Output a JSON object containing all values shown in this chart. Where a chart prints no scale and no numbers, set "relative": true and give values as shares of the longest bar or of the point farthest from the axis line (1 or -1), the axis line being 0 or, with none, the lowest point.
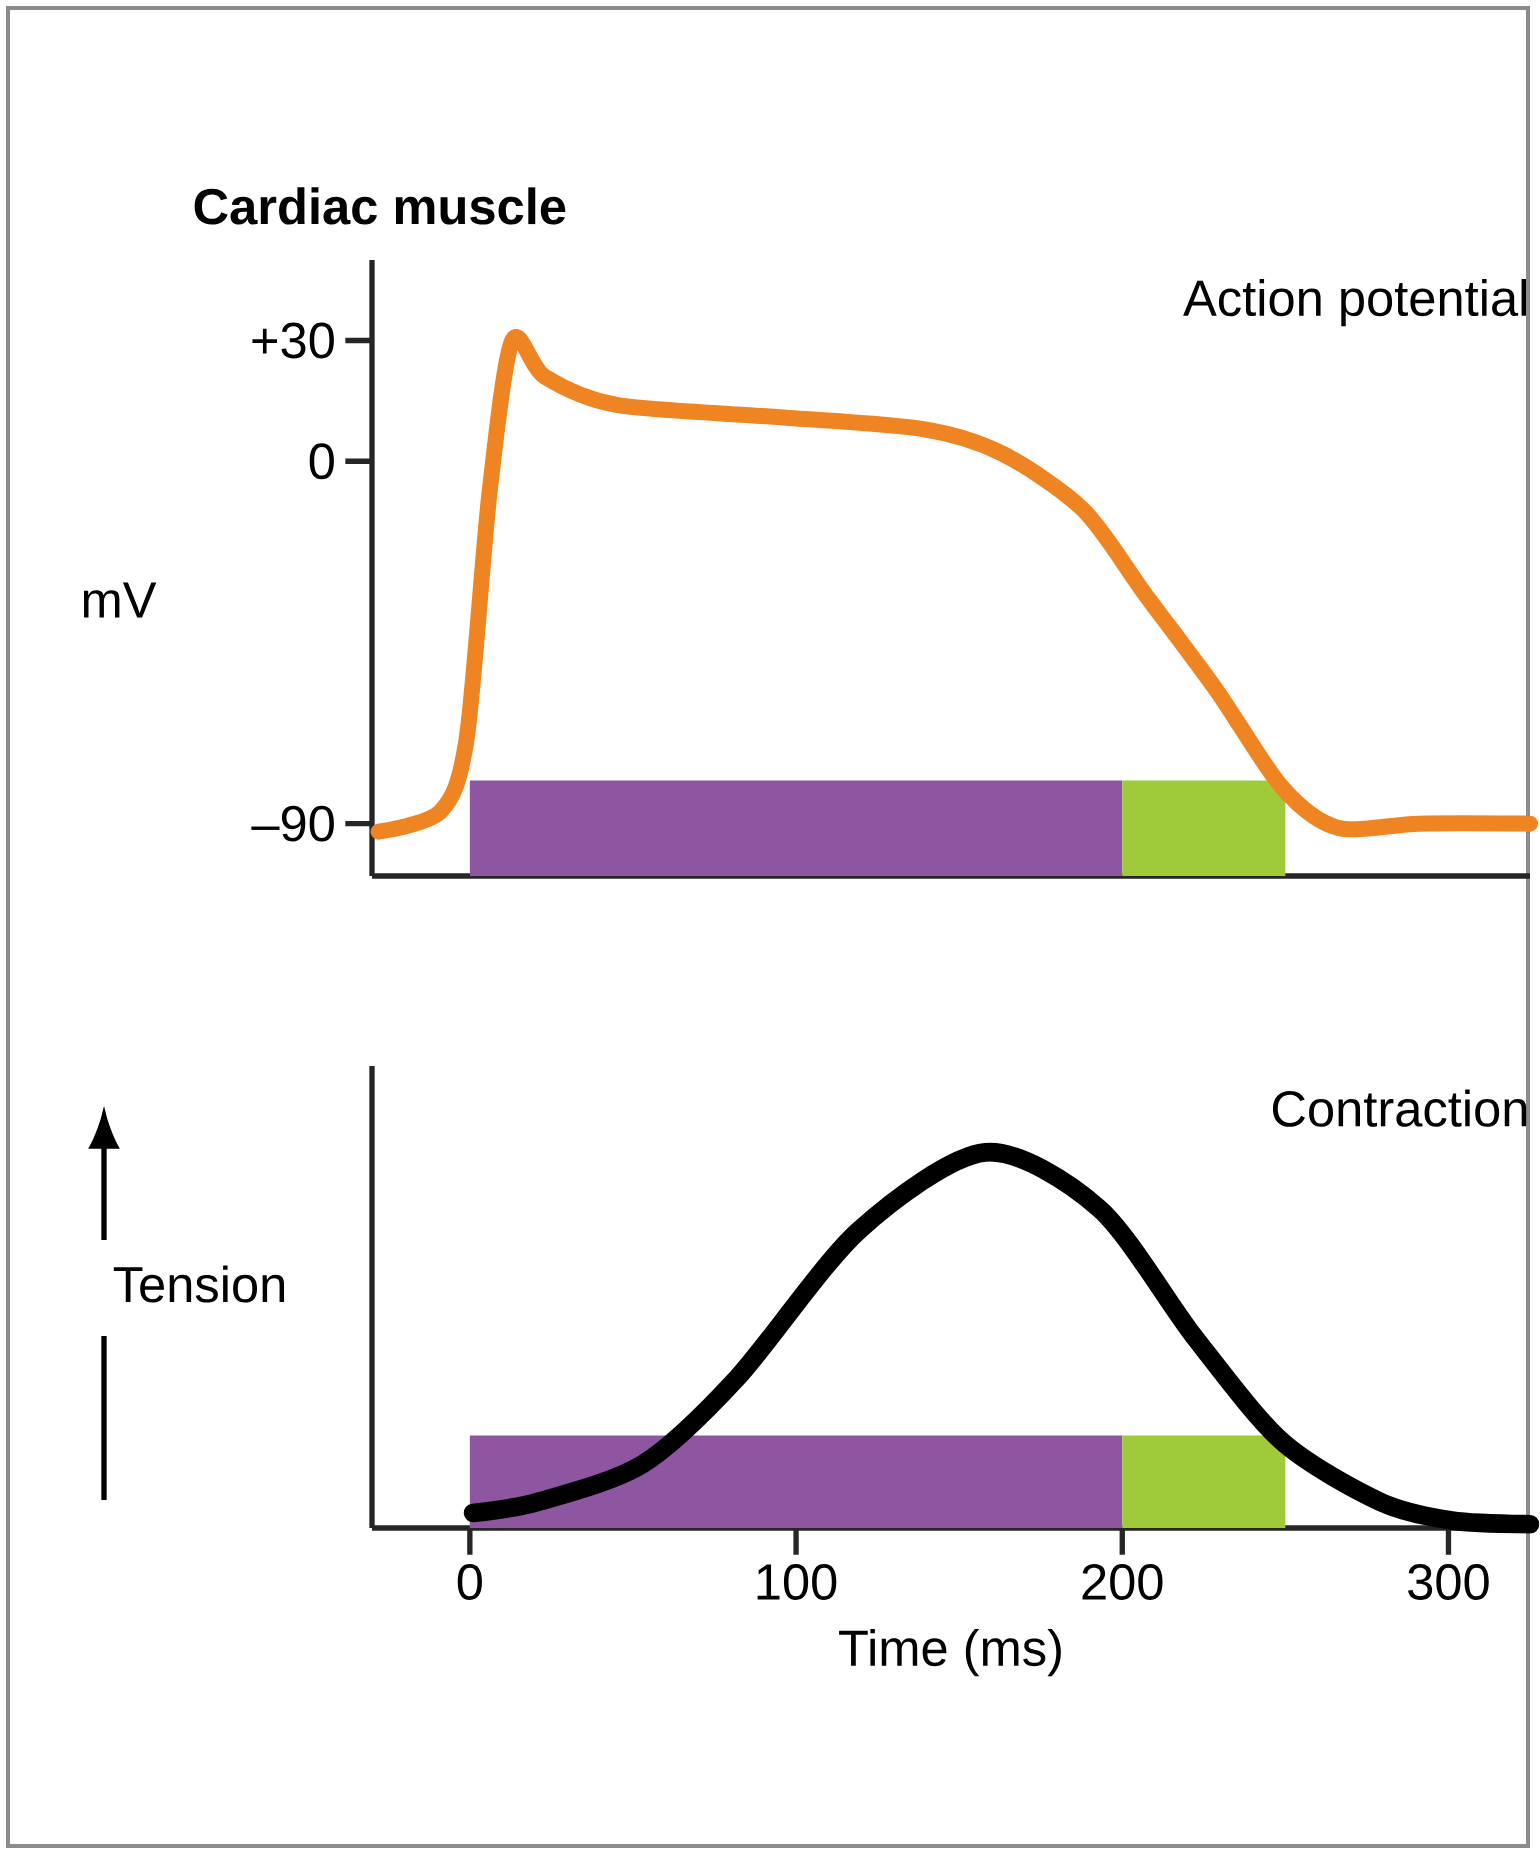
{
  "chart_data": [
    {
      "type": "line",
      "title": "Cardiac muscle",
      "ylabel": "mV",
      "xlim": [
        -30,
        325
      ],
      "ylim": [
        -103,
        50
      ],
      "yticks": [
        {
          "value": 30,
          "label": "+30"
        },
        0,
        {
          "value": -90,
          "label": "–90"
        }
      ],
      "tick_labels": "y",
      "marker": "none",
      "series": [
        {
          "name": "Action potential",
          "color": "#ee8422",
          "x": [
            -28,
            -9,
            -1,
            6,
            13,
            23,
            45,
            94,
            139,
            163,
            188,
            207,
            229,
            249,
            266,
            291,
            325
          ],
          "values": [
            -92,
            -87,
            -69,
            -8,
            30,
            21,
            14,
            11,
            8,
            2,
            -12,
            -33,
            -57,
            -81,
            -91,
            -90,
            -90
          ]
        }
      ],
      "bands": [
        {
          "axis": "x",
          "from": 0,
          "to": 200,
          "color": "#8e56a0"
        },
        {
          "axis": "x",
          "from": 200,
          "to": 250,
          "color": "#9fcb3b"
        }
      ]
    },
    {
      "type": "line",
      "ylabel": "Tension",
      "xlabel": "Time (ms)",
      "relative": true,
      "xlim": [
        -30,
        325
      ],
      "xticks": [
        0,
        100,
        200,
        300
      ],
      "tick_labels": "x",
      "marker": "none",
      "series": [
        {
          "name": "Contraction",
          "color": "#000000",
          "x": [
            1,
            21,
            53,
            82,
            119,
            158,
            193,
            222,
            249,
            279,
            301,
            325
          ],
          "values": [
            0.04,
            0.07,
            0.17,
            0.4,
            0.79,
            1,
            0.85,
            0.51,
            0.23,
            0.07,
            0.02,
            0.01
          ]
        }
      ],
      "bands": [
        {
          "axis": "x",
          "from": 0,
          "to": 200,
          "color": "#8e56a0"
        },
        {
          "axis": "x",
          "from": 200,
          "to": 250,
          "color": "#9fcb3b"
        }
      ]
    }
  ]
}
